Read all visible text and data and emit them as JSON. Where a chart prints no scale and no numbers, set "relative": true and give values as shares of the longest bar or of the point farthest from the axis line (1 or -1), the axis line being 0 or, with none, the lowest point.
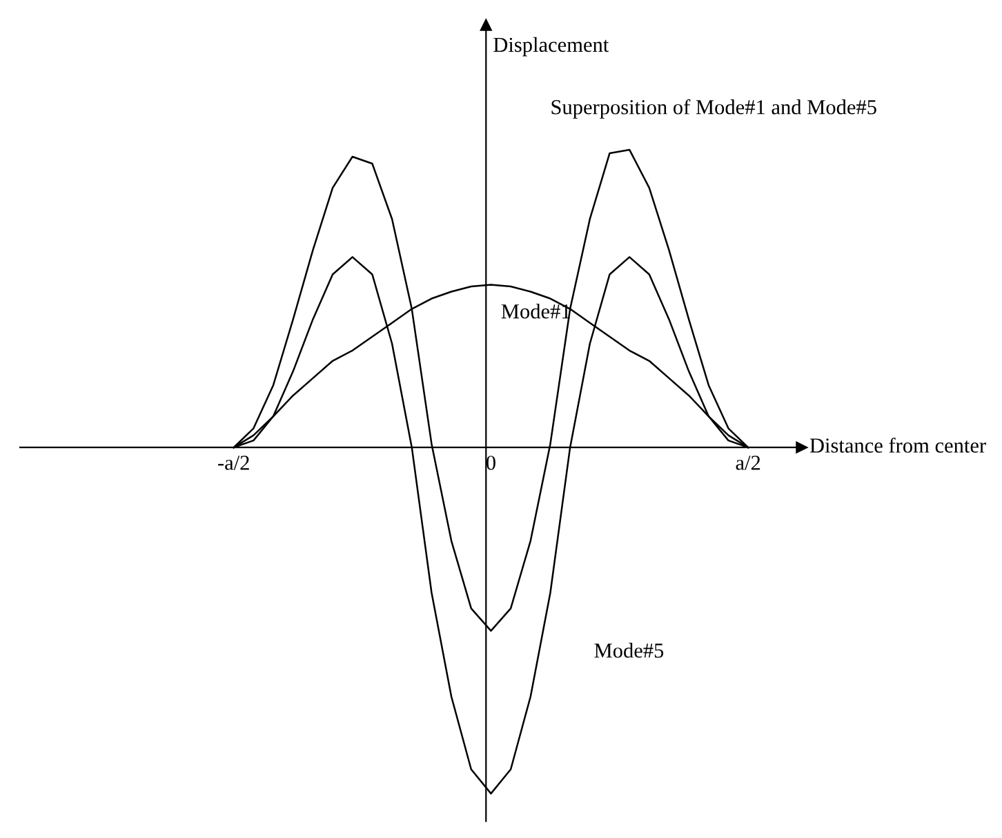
{
  "chart_data": {
    "type": "line",
    "relative": true,
    "xlabel": "Distance from center",
    "ylabel": "Displacement",
    "categories": [
      "-a/2",
      null,
      null,
      null,
      null,
      null,
      null,
      null,
      null,
      null,
      null,
      null,
      null,
      "0",
      null,
      null,
      null,
      null,
      null,
      null,
      null,
      null,
      null,
      null,
      null,
      null,
      "a/2"
    ],
    "series": [
      {
        "color": "#000000",
        "values": [
          0,
          0.035,
          0.09,
          0.15,
          0.2,
          0.25,
          0.28,
          0.32,
          0.36,
          0.4,
          0.43,
          0.45,
          0.465,
          0.47,
          0.465,
          0.45,
          0.43,
          0.4,
          0.36,
          0.32,
          0.28,
          0.25,
          0.2,
          0.15,
          0.09,
          0.035,
          0
        ]
      },
      {
        "color": "#000000",
        "values": [
          0,
          0.02,
          0.09,
          0.22,
          0.37,
          0.5,
          0.55,
          0.5,
          0.3,
          0,
          -0.42,
          -0.72,
          -0.93,
          -1,
          -0.93,
          -0.72,
          -0.42,
          0,
          0.3,
          0.5,
          0.55,
          0.5,
          0.37,
          0.22,
          0.09,
          0.02,
          0
        ]
      },
      {
        "color": "#000000",
        "values": [
          0,
          0.055,
          0.18,
          0.37,
          0.57,
          0.75,
          0.84,
          0.82,
          0.66,
          0.4,
          0.01,
          -0.27,
          -0.465,
          -0.53,
          -0.465,
          -0.27,
          0.01,
          0.4,
          0.66,
          0.85,
          0.86,
          0.75,
          0.57,
          0.37,
          0.18,
          0.055,
          0
        ]
      }
    ],
    "annotations": [
      "Superposition of Mode#1 and Mode#5",
      "Mode#1",
      "Mode#5"
    ],
    "grid": false,
    "legend": false,
    "marker": "none",
    "line_style": "solid"
  }
}
